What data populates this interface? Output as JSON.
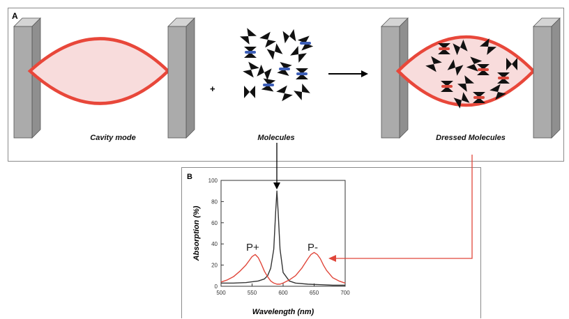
{
  "panel_a": {
    "label": "A",
    "plus": "+",
    "captions": {
      "cavity": "Cavity mode",
      "molecules": "Molecules",
      "dressed": "Dressed Molecules"
    },
    "colors": {
      "cavity_line": "#e8473a",
      "cavity_fill": "#f8dcdc",
      "mirror": "#a8a8a8",
      "molecule": "#111111",
      "molecule_plain_dash": "#3d5fb8",
      "molecule_dressed_dash": "#d9473a"
    }
  },
  "panel_b": {
    "label": "B",
    "annotations": {
      "p_plus": "P+",
      "p_minus": "P-"
    }
  },
  "chart_data": {
    "type": "line",
    "xlabel": "Wavelength (nm)",
    "ylabel": "Absorption (%)",
    "xlim": [
      500,
      700
    ],
    "ylim": [
      0,
      100
    ],
    "xticks": [
      500,
      550,
      600,
      650,
      700
    ],
    "yticks": [
      0,
      20,
      40,
      60,
      80,
      100
    ],
    "grid": false,
    "series": [
      {
        "color": "#333333",
        "x": [
          500,
          520,
          540,
          560,
          570,
          575,
          580,
          585,
          588,
          590,
          592,
          595,
          600,
          610,
          620,
          640,
          660,
          680,
          700
        ],
        "y": [
          3,
          3,
          3.5,
          5,
          7,
          10,
          17,
          35,
          70,
          90,
          70,
          35,
          13,
          5,
          3,
          2,
          1.5,
          1,
          1
        ]
      },
      {
        "color": "#e0463a",
        "x": [
          500,
          510,
          520,
          530,
          540,
          545,
          550,
          555,
          560,
          565,
          570,
          575,
          580,
          585,
          590,
          595,
          600,
          610,
          620,
          630,
          640,
          645,
          650,
          655,
          660,
          665,
          670,
          680,
          690,
          700
        ],
        "y": [
          4,
          6,
          9,
          14,
          20,
          24,
          28,
          30,
          27,
          21,
          14,
          9,
          5,
          3,
          2,
          2,
          3,
          6,
          10,
          17,
          26,
          30,
          32,
          30,
          26,
          20,
          15,
          8,
          5,
          3
        ]
      }
    ]
  }
}
